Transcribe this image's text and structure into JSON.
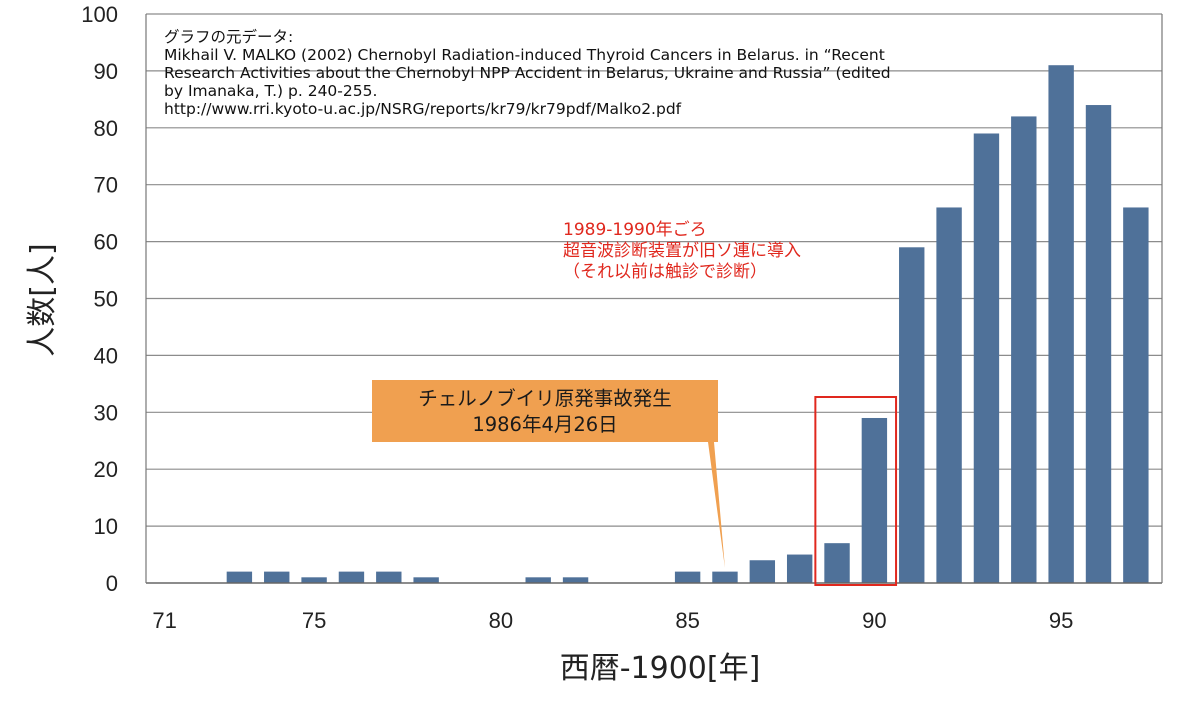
{
  "chart_data": {
    "type": "bar",
    "x": [
      71,
      72,
      73,
      74,
      75,
      76,
      77,
      78,
      79,
      80,
      81,
      82,
      83,
      84,
      85,
      86,
      87,
      88,
      89,
      90,
      91,
      92,
      93,
      94,
      95,
      96,
      97
    ],
    "values": [
      0,
      0,
      2,
      2,
      1,
      2,
      2,
      1,
      0,
      0,
      1,
      1,
      0,
      0,
      2,
      2,
      4,
      5,
      7,
      29,
      59,
      66,
      79,
      82,
      91,
      84,
      66
    ],
    "x_tick_labels": [
      "71",
      "75",
      "80",
      "85",
      "90",
      "95"
    ],
    "x_tick_values": [
      71,
      75,
      80,
      85,
      90,
      95
    ],
    "y_tick_labels": [
      "0",
      "10",
      "20",
      "30",
      "40",
      "50",
      "60",
      "70",
      "80",
      "90",
      "100"
    ],
    "ylim": [
      0,
      100
    ],
    "xlabel": "西暦-1900[年]",
    "ylabel": "人数[人]",
    "grid": true,
    "bar_color": "#4f7199",
    "annotations": {
      "source_lines": [
        "グラフの元データ:",
        "Mikhail V. MALKO (2002) Chernobyl Radiation-induced Thyroid Cancers in Belarus. in “Recent",
        "Research Activities about the Chernobyl NPP Accident in Belarus, Ukraine and Russia” (edited",
        "by Imanaka, T.) p. 240-255.",
        "http://www.rri.kyoto-u.ac.jp/NSRG/reports/kr79/kr79pdf/Malko2.pdf"
      ],
      "ultrasound_note": [
        "1989-1990年ごろ",
        "超音波診断装置が旧ソ連に導入",
        "（それ以前は触診で診断）"
      ],
      "callout": [
        "チェルノブイリ原発事故発生",
        "1986年4月26日"
      ],
      "callout_color": "#f0a050",
      "callout_points_to_x": 86,
      "highlight_range_x": [
        89,
        90
      ],
      "highlight_color": "#e0281e"
    }
  }
}
